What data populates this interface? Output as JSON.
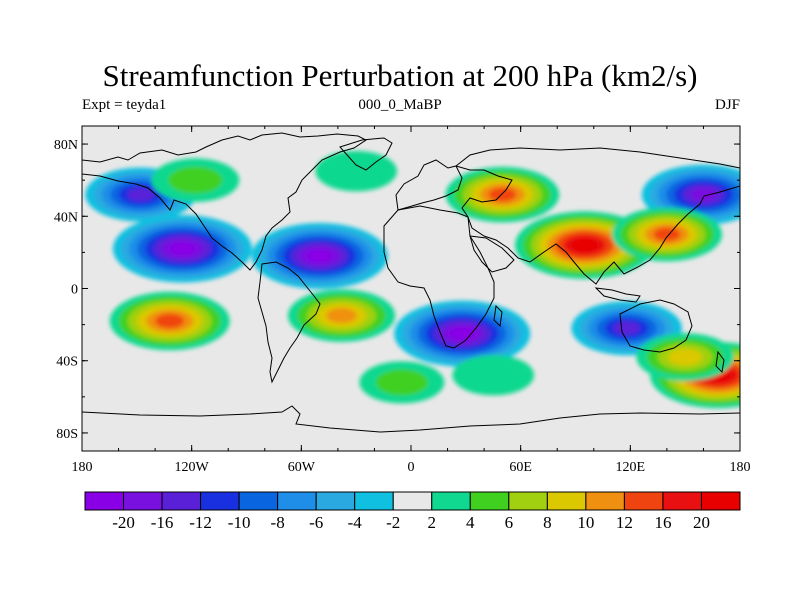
{
  "title": "Streamfunction Perturbation at 200 hPa (km2/s)",
  "subtitle_left": "Expt = teyda1",
  "subtitle_center": "000_0_MaBP",
  "subtitle_right": "DJF",
  "lat_labels": [
    {
      "value": 80,
      "text": "80N"
    },
    {
      "value": 40,
      "text": "40N"
    },
    {
      "value": 0,
      "text": "0"
    },
    {
      "value": -40,
      "text": "40S"
    },
    {
      "value": -80,
      "text": "80S"
    }
  ],
  "lon_labels": [
    {
      "value": -180,
      "text": "180"
    },
    {
      "value": -120,
      "text": "120W"
    },
    {
      "value": -60,
      "text": "60W"
    },
    {
      "value": 0,
      "text": "0"
    },
    {
      "value": 60,
      "text": "60E"
    },
    {
      "value": 120,
      "text": "120E"
    },
    {
      "value": 180,
      "text": "180"
    }
  ],
  "colorbar": {
    "labels": [
      "-20",
      "-16",
      "-12",
      "-10",
      "-8",
      "-6",
      "-4",
      "-2",
      "2",
      "4",
      "6",
      "8",
      "10",
      "12",
      "16",
      "20"
    ],
    "colors": [
      "#8a00e6",
      "#7a10e0",
      "#5a20d8",
      "#1830e0",
      "#0a66e0",
      "#1f8ee8",
      "#2aa8e0",
      "#10c0e0",
      "#e8e8e8",
      "#10d890",
      "#40d020",
      "#a0d010",
      "#dcc800",
      "#f09010",
      "#f04410",
      "#e81010",
      "#e80000"
    ]
  },
  "chart_data": {
    "type": "contour-map",
    "variable": "Streamfunction Perturbation",
    "level": "200 hPa",
    "units": "km2/s",
    "experiment": "teyda1",
    "season": "DJF",
    "lon_range": [
      -180,
      180
    ],
    "lat_range": [
      -90,
      90
    ],
    "contour_levels": [
      -20,
      -16,
      -12,
      -10,
      -8,
      -6,
      -4,
      -2,
      2,
      4,
      6,
      8,
      10,
      12,
      16,
      20
    ],
    "features": [
      {
        "lon": -125,
        "lat": 22,
        "value": -21
      },
      {
        "lon": -50,
        "lat": 18,
        "value": -20
      },
      {
        "lon": -148,
        "lat": 52,
        "value": -12
      },
      {
        "lon": 160,
        "lat": 52,
        "value": -16
      },
      {
        "lon": 95,
        "lat": 24,
        "value": 21
      },
      {
        "lon": 140,
        "lat": 30,
        "value": 12
      },
      {
        "lon": 50,
        "lat": 52,
        "value": 13
      },
      {
        "lon": -132,
        "lat": -18,
        "value": 15
      },
      {
        "lon": -38,
        "lat": -15,
        "value": 11
      },
      {
        "lon": 28,
        "lat": -25,
        "value": -20
      },
      {
        "lon": 118,
        "lat": -22,
        "value": -12
      },
      {
        "lon": 168,
        "lat": -48,
        "value": 20
      },
      {
        "lon": 150,
        "lat": -38,
        "value": 8
      },
      {
        "lon": -118,
        "lat": 60,
        "value": 5
      },
      {
        "lon": -5,
        "lat": -52,
        "value": 4
      },
      {
        "lon": -30,
        "lat": 65,
        "value": 3
      },
      {
        "lon": 45,
        "lat": -48,
        "value": 3
      }
    ]
  }
}
